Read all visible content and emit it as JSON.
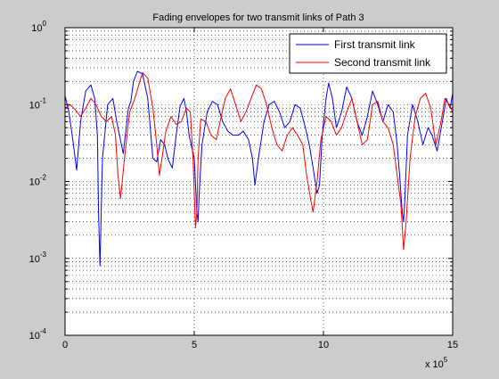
{
  "chart_data": {
    "type": "line",
    "title": "Fading envelopes for two transmit links of Path 3",
    "xlabel": "",
    "ylabel": "",
    "x_scale_label": {
      "prefix": "x 10",
      "exponent": "5"
    },
    "xlim": [
      0,
      1500000
    ],
    "ylim": [
      0.0001,
      1
    ],
    "yscale": "log",
    "grid": true,
    "legend_position": "top-right",
    "x_ticks": [
      {
        "value": 0,
        "label": "0"
      },
      {
        "value": 500000,
        "label": "5"
      },
      {
        "value": 1000000,
        "label": "10"
      },
      {
        "value": 1500000,
        "label": "15"
      }
    ],
    "y_ticks": [
      {
        "value": 0.0001,
        "mantissa": "10",
        "exponent": "-4"
      },
      {
        "value": 0.001,
        "mantissa": "10",
        "exponent": "-3"
      },
      {
        "value": 0.01,
        "mantissa": "10",
        "exponent": "-2"
      },
      {
        "value": 0.1,
        "mantissa": "10",
        "exponent": "-1"
      },
      {
        "value": 1,
        "mantissa": "10",
        "exponent": "0"
      }
    ],
    "series": [
      {
        "name": "First transmit link",
        "color": "#0000ff",
        "x": [
          0,
          15000,
          30000,
          45000,
          60000,
          80000,
          100000,
          115000,
          125000,
          130000,
          135000,
          145000,
          165000,
          185000,
          200000,
          225000,
          245000,
          255000,
          265000,
          280000,
          300000,
          320000,
          340000,
          355000,
          370000,
          385000,
          400000,
          415000,
          430000,
          445000,
          460000,
          470000,
          480000,
          490000,
          500000,
          510000,
          515000,
          520000,
          530000,
          550000,
          570000,
          590000,
          610000,
          630000,
          650000,
          670000,
          690000,
          710000,
          725000,
          735000,
          750000,
          770000,
          790000,
          810000,
          830000,
          850000,
          870000,
          890000,
          910000,
          930000,
          945000,
          960000,
          975000,
          985000,
          995000,
          1010000,
          1020000,
          1035000,
          1050000,
          1070000,
          1090000,
          1110000,
          1130000,
          1150000,
          1170000,
          1190000,
          1210000,
          1230000,
          1250000,
          1270000,
          1285000,
          1295000,
          1305000,
          1310000,
          1315000,
          1325000,
          1345000,
          1365000,
          1385000,
          1405000,
          1420000,
          1440000,
          1460000,
          1475000,
          1490000,
          1500000
        ],
        "values": [
          0.13,
          0.08,
          0.035,
          0.014,
          0.06,
          0.15,
          0.18,
          0.12,
          0.04,
          0.0035,
          0.0008,
          0.02,
          0.1,
          0.12,
          0.06,
          0.023,
          0.09,
          0.11,
          0.2,
          0.27,
          0.25,
          0.12,
          0.02,
          0.018,
          0.035,
          0.03,
          0.019,
          0.015,
          0.04,
          0.095,
          0.12,
          0.08,
          0.04,
          0.028,
          0.02,
          0.004,
          0.003,
          0.008,
          0.03,
          0.08,
          0.11,
          0.1,
          0.06,
          0.045,
          0.04,
          0.04,
          0.045,
          0.035,
          0.02,
          0.009,
          0.022,
          0.06,
          0.1,
          0.11,
          0.08,
          0.05,
          0.06,
          0.1,
          0.09,
          0.05,
          0.03,
          0.015,
          0.007,
          0.009,
          0.04,
          0.12,
          0.19,
          0.12,
          0.05,
          0.08,
          0.17,
          0.12,
          0.06,
          0.04,
          0.07,
          0.15,
          0.1,
          0.06,
          0.1,
          0.08,
          0.03,
          0.012,
          0.004,
          0.003,
          0.006,
          0.04,
          0.1,
          0.06,
          0.03,
          0.05,
          0.04,
          0.025,
          0.06,
          0.12,
          0.09,
          0.14
        ]
      },
      {
        "name": "Second transmit link",
        "color": "#ff0000",
        "x": [
          0,
          20000,
          40000,
          60000,
          80000,
          100000,
          120000,
          140000,
          160000,
          180000,
          195000,
          205000,
          215000,
          230000,
          250000,
          270000,
          285000,
          300000,
          320000,
          340000,
          355000,
          365000,
          375000,
          390000,
          410000,
          430000,
          450000,
          470000,
          485000,
          495000,
          505000,
          510000,
          515000,
          525000,
          545000,
          565000,
          585000,
          600000,
          620000,
          640000,
          660000,
          680000,
          700000,
          720000,
          740000,
          760000,
          780000,
          800000,
          820000,
          840000,
          860000,
          880000,
          900000,
          920000,
          935000,
          950000,
          960000,
          975000,
          990000,
          1010000,
          1030000,
          1050000,
          1070000,
          1090000,
          1110000,
          1130000,
          1150000,
          1170000,
          1190000,
          1210000,
          1230000,
          1250000,
          1270000,
          1285000,
          1300000,
          1310000,
          1320000,
          1335000,
          1355000,
          1375000,
          1395000,
          1415000,
          1435000,
          1455000,
          1470000,
          1485000,
          1500000
        ],
        "values": [
          0.09,
          0.1,
          0.085,
          0.07,
          0.09,
          0.12,
          0.1,
          0.07,
          0.06,
          0.07,
          0.04,
          0.012,
          0.006,
          0.02,
          0.08,
          0.12,
          0.18,
          0.26,
          0.22,
          0.09,
          0.03,
          0.012,
          0.02,
          0.045,
          0.07,
          0.055,
          0.06,
          0.09,
          0.08,
          0.02,
          0.0025,
          0.004,
          0.02,
          0.065,
          0.06,
          0.04,
          0.035,
          0.06,
          0.12,
          0.16,
          0.1,
          0.06,
          0.08,
          0.12,
          0.18,
          0.16,
          0.1,
          0.05,
          0.03,
          0.025,
          0.04,
          0.05,
          0.04,
          0.03,
          0.012,
          0.006,
          0.004,
          0.01,
          0.035,
          0.07,
          0.06,
          0.04,
          0.05,
          0.08,
          0.12,
          0.06,
          0.03,
          0.035,
          0.1,
          0.11,
          0.06,
          0.05,
          0.03,
          0.012,
          0.005,
          0.0013,
          0.003,
          0.02,
          0.07,
          0.12,
          0.14,
          0.09,
          0.03,
          0.06,
          0.12,
          0.1,
          0.08
        ]
      }
    ]
  }
}
